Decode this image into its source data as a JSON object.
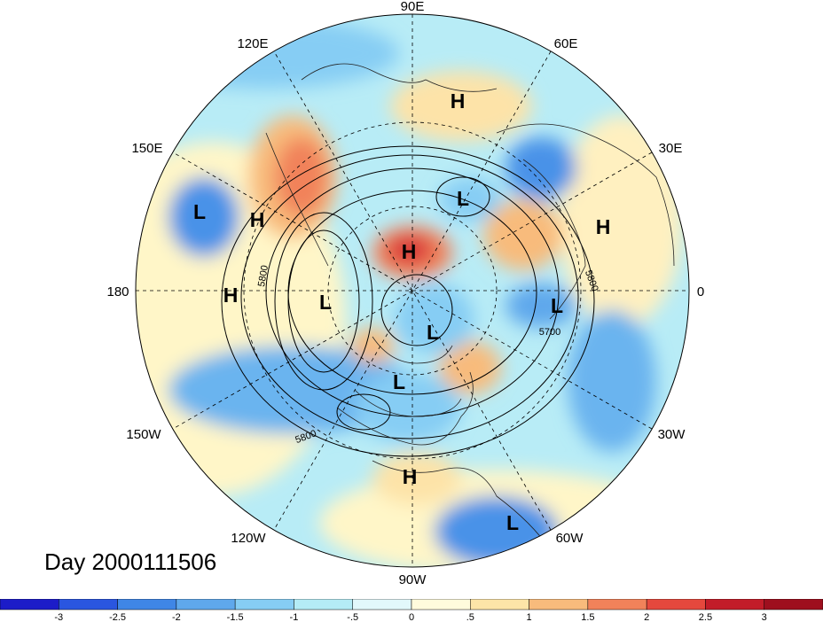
{
  "title": "Day 2000111506",
  "longitude_labels": [
    "90E",
    "60E",
    "30E",
    "0",
    "30W",
    "60W",
    "90W",
    "120W",
    "150W",
    "180",
    "150E",
    "120E"
  ],
  "pressure_centers": [
    "H",
    "L",
    "L",
    "H",
    "H",
    "H",
    "H",
    "L",
    "L",
    "L",
    "L",
    "H",
    "L"
  ],
  "contour_labels": [
    "5800",
    "5800",
    "5700",
    "5800"
  ],
  "colorbar": {
    "ticks": [
      "-3",
      "-2.5",
      "-2",
      "-1.5",
      "-1",
      "-.5",
      "0",
      ".5",
      "1",
      "1.5",
      "2",
      "2.5",
      "3"
    ],
    "colors": [
      "#1c1cc8",
      "#2a56e0",
      "#3f86e6",
      "#5fa8ec",
      "#86cdf4",
      "#b4ecf6",
      "#e2f8fb",
      "#fffbdc",
      "#fde5a8",
      "#f8bb7c",
      "#f1825a",
      "#e5483d",
      "#c21c29",
      "#9e0f1e"
    ]
  }
}
